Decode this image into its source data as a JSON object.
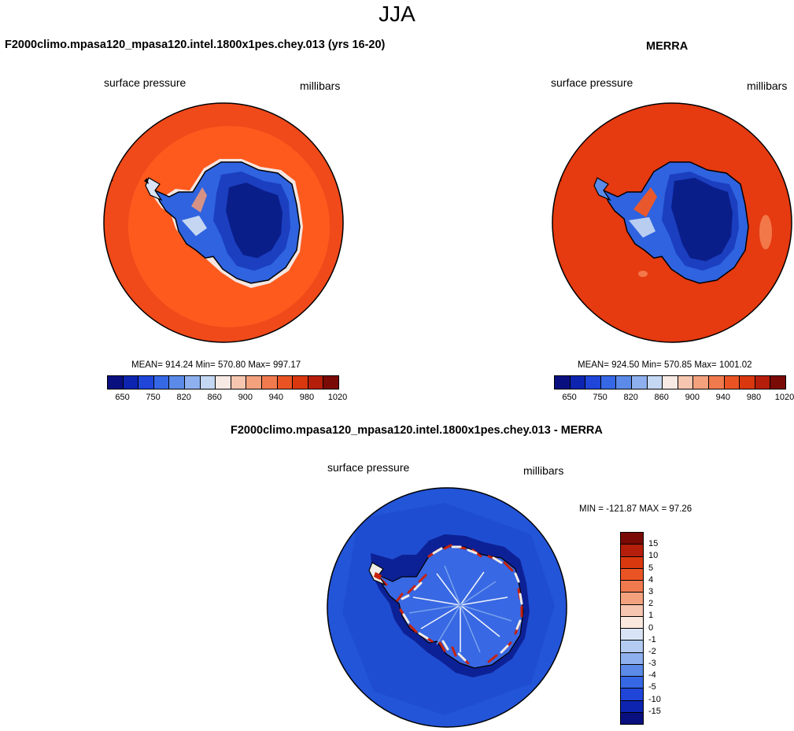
{
  "figure": {
    "title": "JJA"
  },
  "palette": {
    "ocean_model": "#ff5a1e",
    "ocean_model_outer": "#f0491a",
    "ocean_merra": "#e63a10",
    "ice_low": "#0b2796",
    "ice_mid": "#2457e0",
    "ice_high": "#8fb5f0",
    "coast_white": "#f5ecea",
    "diff_ocean": "#1f4fd6",
    "diff_dark": "#0f2aa8"
  },
  "panel_model": {
    "title": "F2000climo.mpasa120_mpasa120.intel.1800x1pes.chey.013 (yrs 16-20)",
    "left_label": "surface pressure",
    "right_label": "millibars",
    "stats": "MEAN= 914.24  Min= 570.80  Max= 997.17"
  },
  "panel_merra": {
    "title": "MERRA",
    "left_label": "surface pressure",
    "right_label": "millibars",
    "stats": "MEAN= 924.50  Min= 570.85  Max= 1001.02"
  },
  "panel_diff": {
    "title": "F2000climo.mpasa120_mpasa120.intel.1800x1pes.chey.013 - MERRA",
    "left_label": "surface pressure",
    "right_label": "millibars",
    "stats": "MIN = -121.87 MAX =  97.26"
  },
  "colorbar_abs": {
    "colors": [
      "#0a0f80",
      "#0d24b0",
      "#1f45d9",
      "#3668e6",
      "#5b8ae8",
      "#8eb0ee",
      "#c4d7f3",
      "#f7e9e4",
      "#f6c6b0",
      "#f4a27e",
      "#f07a4e",
      "#ea5424",
      "#d9380f",
      "#b51e0a",
      "#7a0a06"
    ],
    "tick_labels": [
      "650",
      "750",
      "820",
      "860",
      "900",
      "940",
      "980",
      "1020"
    ]
  },
  "colorbar_diff": {
    "colors": [
      "#7a0a06",
      "#b51e0a",
      "#d9380f",
      "#ea5424",
      "#f07a4e",
      "#f4a27e",
      "#f6c6b0",
      "#fbe8de",
      "#d8e4f6",
      "#b3cbf1",
      "#8eb0ee",
      "#5b8ae8",
      "#3668e6",
      "#1f45d9",
      "#0d24b0",
      "#0a0f80"
    ],
    "tick_labels": [
      "15",
      "10",
      "5",
      "4",
      "3",
      "2",
      "1",
      "0",
      "-1",
      "-2",
      "-3",
      "-4",
      "-5",
      "-10",
      "-15"
    ]
  }
}
